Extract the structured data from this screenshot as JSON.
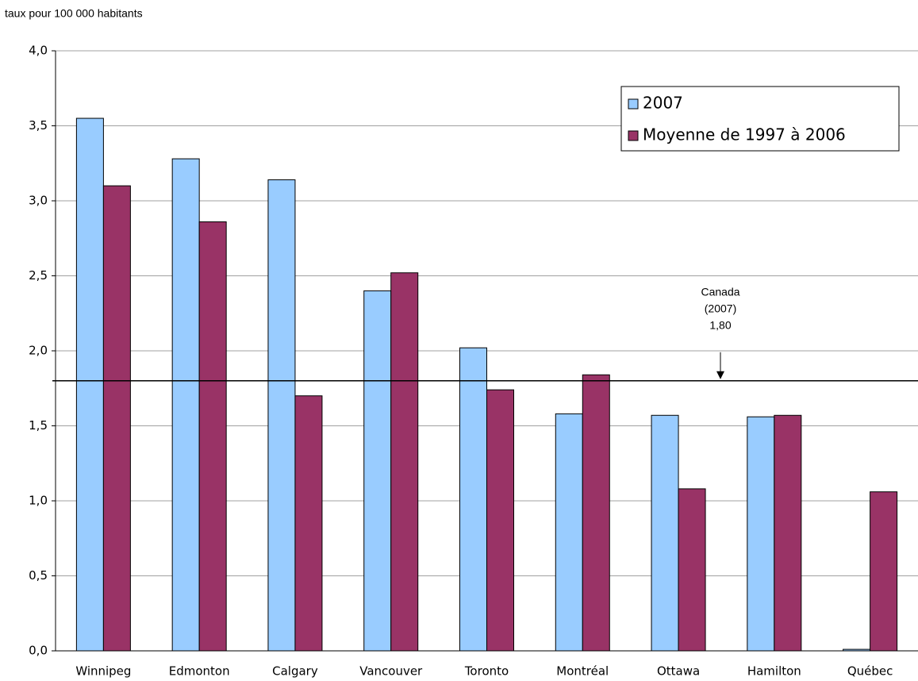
{
  "chart_data": {
    "type": "bar",
    "ylabel": "taux pour 100 000 habitants",
    "categories": [
      "Winnipeg",
      "Edmonton",
      "Calgary",
      "Vancouver",
      "Toronto",
      "Montréal",
      "Ottawa",
      "Hamilton",
      "Québec"
    ],
    "series": [
      {
        "name": "2007",
        "color": "#99ccff",
        "values": [
          3.55,
          3.28,
          3.14,
          2.4,
          2.02,
          1.58,
          1.57,
          1.56,
          0.01
        ]
      },
      {
        "name": "Moyenne de 1997 à 2006",
        "color": "#993366",
        "values": [
          3.1,
          2.86,
          1.7,
          2.52,
          1.74,
          1.84,
          1.08,
          1.57,
          1.06
        ]
      }
    ],
    "ylim": [
      0,
      4
    ],
    "yticks": [
      {
        "value": 0,
        "label": "0,0"
      },
      {
        "value": 0.5,
        "label": "0,5"
      },
      {
        "value": 1,
        "label": "1,0"
      },
      {
        "value": 1.5,
        "label": "1,5"
      },
      {
        "value": 2,
        "label": "2,0"
      },
      {
        "value": 2.5,
        "label": "2,5"
      },
      {
        "value": 3,
        "label": "3,0"
      },
      {
        "value": 3.5,
        "label": "3,5"
      },
      {
        "value": 4,
        "label": "4,0"
      }
    ],
    "grid": true,
    "legend": "upper right",
    "reference_line": {
      "value": 1.8,
      "label_lines": [
        "Canada",
        "(2007)",
        "1,80"
      ]
    }
  }
}
